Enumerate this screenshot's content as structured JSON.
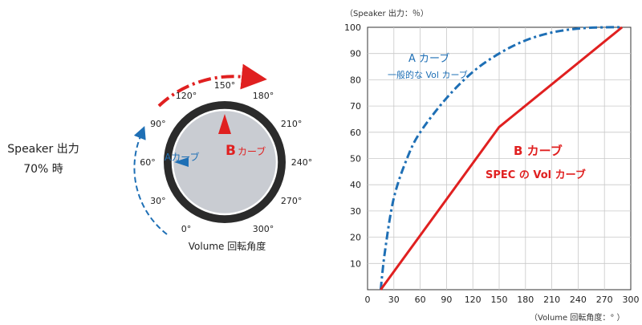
{
  "left_panel": {
    "speaker_line1": "Speaker 出力",
    "speaker_line2": "70% 時",
    "volume_label": "Volume 回転角度",
    "dial_ticks": [
      "0°",
      "30°",
      "60°",
      "90°",
      "120°",
      "150°",
      "180°",
      "210°",
      "240°",
      "270°",
      "300°"
    ],
    "a_marker_label": "Aカーブ",
    "b_marker_label": "カーブ",
    "b_marker_letter": "B",
    "a_marker_angle": 60,
    "b_marker_angle": 150,
    "colors": {
      "a": "#1e6fb5",
      "b": "#e02020",
      "knob_face": "#c9ccd2",
      "knob_ring": "#2b2b2b"
    }
  },
  "chart_data": {
    "type": "line",
    "xlabel": "（Volume 回転角度：° ）",
    "ylabel": "（Speaker 出力：％）",
    "xlim": [
      0,
      300
    ],
    "ylim": [
      0,
      100
    ],
    "xticks": [
      0,
      30,
      60,
      90,
      120,
      150,
      180,
      210,
      240,
      270,
      300
    ],
    "yticks": [
      10,
      20,
      30,
      40,
      50,
      60,
      70,
      80,
      90,
      100
    ],
    "grid": true,
    "series": [
      {
        "name": "A カーブ",
        "annotation": "一般的な Vol カーブ",
        "style": "dash-dot",
        "color": "#1e6fb5",
        "x": [
          15,
          20,
          30,
          45,
          60,
          90,
          120,
          150,
          180,
          210,
          240,
          270,
          290
        ],
        "y": [
          0,
          15,
          35,
          50,
          60,
          73,
          83,
          90,
          95,
          98,
          99.5,
          100,
          100
        ]
      },
      {
        "name": "B カーブ",
        "annotation": "SPEC の Vol カーブ",
        "style": "solid",
        "color": "#e02020",
        "x": [
          15,
          150,
          290
        ],
        "y": [
          0,
          62,
          100
        ]
      }
    ]
  }
}
